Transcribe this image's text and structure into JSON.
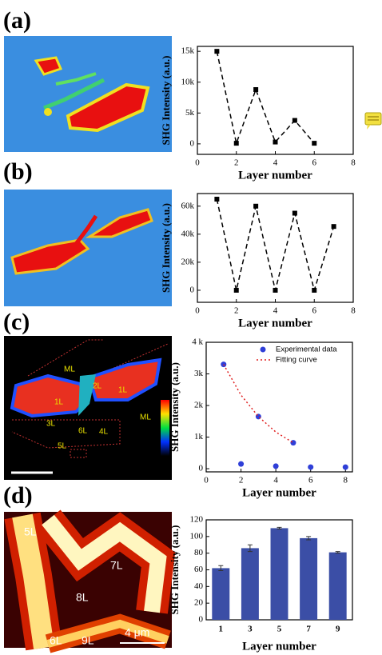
{
  "chart_data": [
    {
      "type": "line",
      "panel_label": "(a)",
      "x": [
        1,
        2,
        3,
        4,
        5,
        6
      ],
      "values": [
        15000,
        100,
        8800,
        300,
        3800,
        100
      ],
      "color": "#000000",
      "line_style": "dashed",
      "marker": "square",
      "xlim": [
        0,
        8
      ],
      "xticks": [
        0,
        2,
        4,
        6,
        8
      ],
      "ylim": [
        -1700,
        15800
      ],
      "yticks": [
        0,
        {
          "value": 5000,
          "label": "5k"
        },
        {
          "value": 10000,
          "label": "10k"
        },
        {
          "value": 15000,
          "label": "15k"
        }
      ],
      "x_label": "Layer number",
      "y_label": "SHG Intensity (a.u.)"
    },
    {
      "type": "line",
      "panel_label": "(b)",
      "x": [
        1,
        2,
        3,
        4,
        5,
        6,
        7
      ],
      "values": [
        65000,
        0,
        60000,
        0,
        55000,
        0,
        45500
      ],
      "color": "#000000",
      "line_style": "dashed",
      "marker": "square",
      "xlim": [
        0,
        8
      ],
      "xticks": [
        0,
        2,
        4,
        6,
        8
      ],
      "ylim": [
        -8600,
        69000
      ],
      "yticks": [
        0,
        {
          "value": 20000,
          "label": "20k"
        },
        {
          "value": 40000,
          "label": "40k"
        },
        {
          "value": 60000,
          "label": "60k"
        }
      ],
      "x_label": "Layer number",
      "y_label": "SHG Intensity (a.u.)"
    },
    {
      "type": "scatter",
      "panel_label": "(c)",
      "image_labels": [
        "ML",
        "2L",
        "1L",
        "1L",
        "ML",
        "3L",
        "6L",
        "4L",
        "5L"
      ],
      "series": [
        {
          "name": "Experimental data",
          "color": "#2f3fd8",
          "mode": "markers",
          "x": [
            1,
            2,
            3,
            4,
            5,
            6,
            8
          ],
          "values": [
            3300,
            150,
            1650,
            80,
            820,
            50,
            50
          ]
        },
        {
          "name": "Fitting curve",
          "color": "#e02020",
          "mode": "dotted-line",
          "x": [
            1,
            2,
            3,
            4,
            5
          ],
          "values": [
            3300,
            2330,
            1650,
            1160,
            820
          ]
        }
      ],
      "legend": "upper right",
      "xlim": [
        0,
        8.4
      ],
      "xticks": [
        0,
        2,
        4,
        6,
        8
      ],
      "ylim": [
        -100,
        4000
      ],
      "yticks": [
        0,
        {
          "value": 1000,
          "label": "1k"
        },
        {
          "value": 2000,
          "label": "2k"
        },
        {
          "value": 3000,
          "label": "3k"
        },
        {
          "value": 4000,
          "label": "4 k"
        }
      ],
      "x_label": "Layer number",
      "y_label": "SHG Intensity (a.u.)"
    },
    {
      "type": "bar",
      "panel_label": "(d)",
      "image_labels": [
        "5L",
        "7L",
        "8L",
        "6L",
        "9L"
      ],
      "scale_bar": "4 μm",
      "categories": [
        "1",
        "3",
        "5",
        "7",
        "9"
      ],
      "values": [
        62,
        86,
        110,
        98,
        81
      ],
      "errors": [
        3,
        4,
        1,
        2,
        1
      ],
      "color": "#3b4ea6",
      "ylim": [
        0,
        120
      ],
      "yticks": [
        0,
        20,
        40,
        60,
        80,
        100,
        120
      ],
      "x_label": "Layer number",
      "y_label": "SHG Intensity (a.u.)"
    }
  ]
}
